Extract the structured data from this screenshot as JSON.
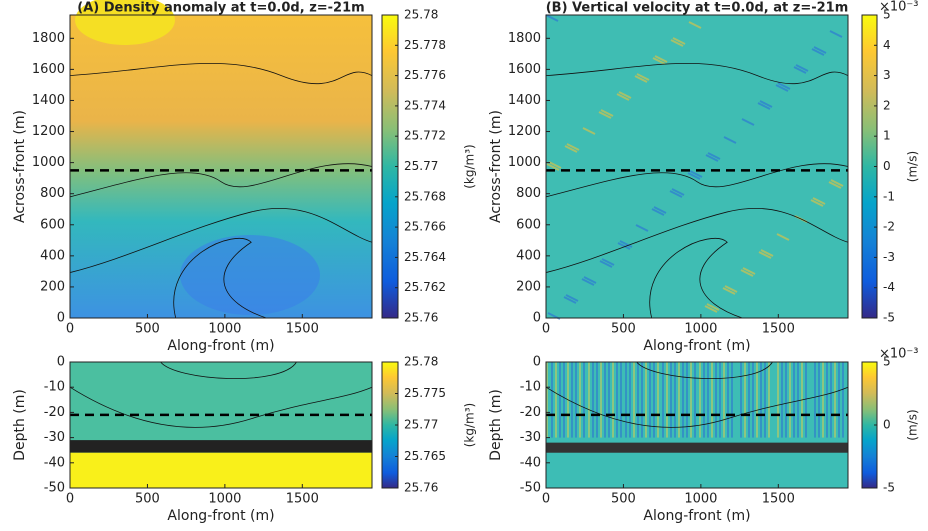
{
  "chart_data": [
    {
      "type": "image",
      "title": "(A) Density anomaly at t=0.0d, z=-21m",
      "xlabel": "Along-front (m)",
      "ylabel": "Across-front (m)",
      "xlim": [
        0,
        1950
      ],
      "ylim": [
        0,
        1950
      ],
      "xticks": [
        0,
        500,
        1000,
        1500
      ],
      "yticks": [
        0,
        200,
        400,
        600,
        800,
        1000,
        1200,
        1400,
        1600,
        1800
      ],
      "hline": 950,
      "colorbar": {
        "label": "(kg/m³)",
        "lim": [
          25.76,
          25.78
        ],
        "ticks": [
          25.76,
          25.762,
          25.764,
          25.766,
          25.768,
          25.77,
          25.772,
          25.774,
          25.776,
          25.778,
          25.78
        ]
      }
    },
    {
      "type": "image",
      "title": "(B) Vertical velocity at t=0.0d, at z=-21m",
      "xlabel": "Along-front (m)",
      "ylabel": "Across-front (m)",
      "xlim": [
        0,
        1950
      ],
      "ylim": [
        0,
        1950
      ],
      "xticks": [
        0,
        500,
        1000,
        1500
      ],
      "yticks": [
        0,
        200,
        400,
        600,
        800,
        1000,
        1200,
        1400,
        1600,
        1800
      ],
      "hline": 950,
      "colorbar": {
        "label": "(m/s)",
        "multiplier": "×10⁻³",
        "lim": [
          -5,
          5
        ],
        "ticks": [
          -5,
          -4,
          -3,
          -2,
          -1,
          0,
          1,
          2,
          3,
          4,
          5
        ]
      }
    },
    {
      "type": "image",
      "xlabel": "Along-front (m)",
      "ylabel": "Depth (m)",
      "xlim": [
        0,
        1950
      ],
      "ylim": [
        -50,
        0
      ],
      "xticks": [
        0,
        500,
        1000,
        1500
      ],
      "yticks": [
        -50,
        -40,
        -30,
        -20,
        -10,
        0
      ],
      "hline": -21,
      "colorbar": {
        "label": "(kg/m³)",
        "lim": [
          25.76,
          25.78
        ],
        "ticks": [
          25.76,
          25.765,
          25.77,
          25.775,
          25.78
        ]
      }
    },
    {
      "type": "image",
      "xlabel": "Along-front (m)",
      "ylabel": "Depth (m)",
      "xlim": [
        0,
        1950
      ],
      "ylim": [
        -50,
        0
      ],
      "xticks": [
        0,
        500,
        1000,
        1500
      ],
      "yticks": [
        -50,
        -40,
        -30,
        -20,
        -10,
        0
      ],
      "hline": -21,
      "colorbar": {
        "label": "(m/s)",
        "multiplier": "×10⁻³",
        "lim": [
          -5,
          5
        ],
        "ticks": [
          -5,
          0,
          5
        ]
      }
    }
  ]
}
